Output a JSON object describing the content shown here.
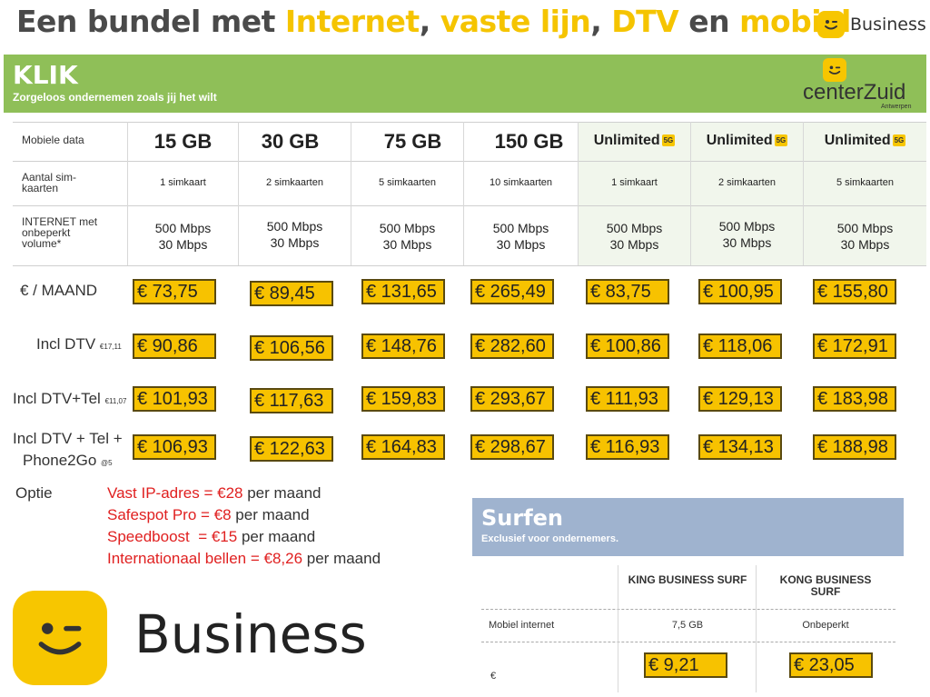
{
  "title": {
    "p1": "Een bundel met ",
    "p2": "Internet",
    "p3": ", ",
    "p4": "vaste lijn",
    "p5": ", ",
    "p6": "DTV",
    "p7": " en ",
    "p8": "mobiel"
  },
  "brand": {
    "word": "Business",
    "icon": "wink-face-icon",
    "color": "#f7c600"
  },
  "klik": {
    "title": "KLIK",
    "subtitle": "Zorgeloos ondernemen zoals jij het wilt",
    "color": "#8fbf58"
  },
  "center_zuid": {
    "name": "centerZuid",
    "city": "Antwerpen"
  },
  "table": {
    "row_labels": {
      "data": "Mobiele data",
      "sims": "Aantal sim-\nkaarten",
      "internet": "INTERNET met\nonbeperkt\nvolume*"
    },
    "columns": [
      {
        "data": "15 GB",
        "sims": "1 simkaart",
        "speed_down": "500 Mbps",
        "speed_up": "30 Mbps"
      },
      {
        "data": "30 GB",
        "sims": "2 simkaarten",
        "speed_down": "500 Mbps",
        "speed_up": "30 Mbps"
      },
      {
        "data": "75 GB",
        "sims": "5 simkaarten",
        "speed_down": "500 Mbps",
        "speed_up": "30 Mbps"
      },
      {
        "data": "150 GB",
        "sims": "10 simkaarten",
        "speed_down": "500 Mbps",
        "speed_up": "30 Mbps"
      },
      {
        "data": "Unlimited",
        "badge": "5G",
        "sims": "1 simkaart",
        "speed_down": "500 Mbps",
        "speed_up": "30 Mbps"
      },
      {
        "data": "Unlimited",
        "badge": "5G",
        "sims": "2 simkaarten",
        "speed_down": "500 Mbps",
        "speed_up": "30 Mbps"
      },
      {
        "data": "Unlimited",
        "badge": "5G",
        "sims": "5 simkaarten",
        "speed_down": "500 Mbps",
        "speed_up": "30 Mbps"
      }
    ]
  },
  "price_rows": [
    {
      "label": "€ / MAAND",
      "note": "",
      "prices": [
        "€ 73,75",
        "€ 89,45",
        "€ 131,65",
        "€ 265,49",
        "€ 83,75",
        "€ 100,95",
        "€ 155,80"
      ]
    },
    {
      "label": "Incl DTV",
      "note": "€17,11",
      "prices": [
        "€ 90,86",
        "€ 106,56",
        "€ 148,76",
        "€ 282,60",
        "€ 100,86",
        "€ 118,06",
        "€ 172,91"
      ]
    },
    {
      "label": "Incl DTV+Tel",
      "note": "€11,07",
      "prices": [
        "€ 101,93",
        "€ 117,63",
        "€ 159,83",
        "€ 293,67",
        "€ 111,93",
        "€ 129,13",
        "€ 183,98"
      ]
    },
    {
      "label_line1": "Incl DTV + Tel +",
      "label_line2": "Phone2Go",
      "note": "@5",
      "prices": [
        "€ 106,93",
        "€ 122,63",
        "€ 164,83",
        "€ 298,67",
        "€ 116,93",
        "€ 134,13",
        "€ 188,98"
      ]
    }
  ],
  "options": {
    "label": "Optie",
    "items": [
      {
        "name": "Vast IP-adres",
        "price": " = €28",
        "suffix": " per maand"
      },
      {
        "name": "Safespot Pro",
        "price": " = €8",
        "suffix": " per maand"
      },
      {
        "name": "Speedboost",
        "price": "  = €15",
        "suffix": " per maand"
      },
      {
        "name": "Internationaal bellen",
        "price": " = €8,26",
        "suffix": " per maand"
      }
    ]
  },
  "surfen": {
    "title": "Surfen",
    "subtitle": "Exclusief voor ondernemers.",
    "columns": [
      "KING BUSINESS SURF",
      "KONG BUSINESS SURF"
    ],
    "row1_label": "Mobiel internet",
    "row1_values": [
      "7,5 GB",
      "Onbeperkt"
    ],
    "row2_label": "€",
    "row2_prices": [
      "€ 9,21",
      "€ 23,05"
    ]
  }
}
